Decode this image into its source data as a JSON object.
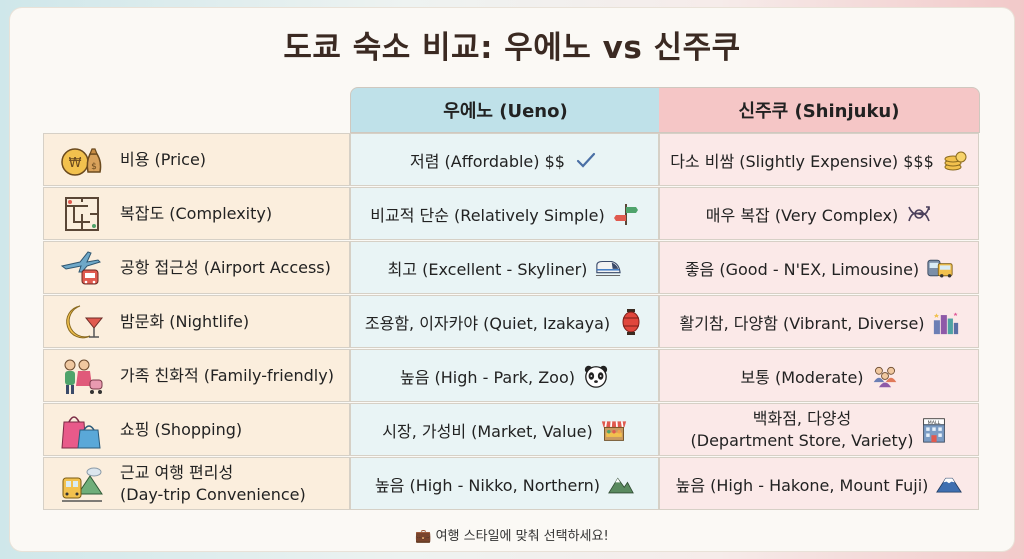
{
  "title": "도쿄 숙소 비교: 우에노 vs 신주쿠",
  "columns": {
    "ueno": "우에노 (Ueno)",
    "shinjuku": "신주쿠 (Shinjuku)"
  },
  "rows": [
    {
      "category": "비용 (Price)",
      "ueno": "저렴 (Affordable) $$",
      "shinjuku": "다소 비쌈 (Slightly Expensive) $$$"
    },
    {
      "category": "복잡도 (Complexity)",
      "ueno": "비교적 단순 (Relatively Simple)",
      "shinjuku": "매우 복잡 (Very Complex)"
    },
    {
      "category": "공항 접근성 (Airport Access)",
      "ueno": "최고 (Excellent - Skyliner)",
      "shinjuku": "좋음 (Good - N'EX, Limousine)"
    },
    {
      "category": "밤문화 (Nightlife)",
      "ueno": "조용함, 이자카야 (Quiet, Izakaya)",
      "shinjuku": "활기참, 다양함 (Vibrant, Diverse)"
    },
    {
      "category": "가족 친화적 (Family-friendly)",
      "ueno": "높음 (High - Park, Zoo)",
      "shinjuku": "보통 (Moderate)"
    },
    {
      "category": "쇼핑 (Shopping)",
      "ueno": "시장, 가성비 (Market, Value)",
      "shinjuku_line1": "백화점, 다양성",
      "shinjuku_line2": "(Department Store, Variety)"
    },
    {
      "category_line1": "근교 여행 편리성",
      "category_line2": "(Day-trip Convenience)",
      "ueno": "높음 (High - Nikko, Northern)",
      "shinjuku": "높음 (High - Hakone, Mount Fuji)"
    }
  ],
  "footer": "💼 여행 스타일에 맞춰 선택하세요!",
  "icons": {
    "row0": [
      "money-bag-icon",
      "checkmark-icon",
      "coin-stack-icon"
    ],
    "row1": [
      "maze-icon",
      "signpost-icon",
      "tangled-arrows-icon"
    ],
    "row2": [
      "airplane-train-icon",
      "bullet-train-icon",
      "bus-train-icon"
    ],
    "row3": [
      "moon-cocktail-icon",
      "lantern-icon",
      "city-skyline-icon"
    ],
    "row4": [
      "family-icon",
      "panda-icon",
      "people-group-icon"
    ],
    "row5": [
      "shopping-bags-icon",
      "market-stall-icon",
      "mall-building-icon"
    ],
    "row6": [
      "train-mountain-icon",
      "mountain-icon",
      "mount-fuji-icon"
    ]
  },
  "colors": {
    "ueno_header": "#bfe1e9",
    "shinjuku_header": "#f5c6c6",
    "category_bg": "#fbeedd",
    "ueno_bg": "#e9f4f5",
    "shinjuku_bg": "#fbe9e8"
  }
}
